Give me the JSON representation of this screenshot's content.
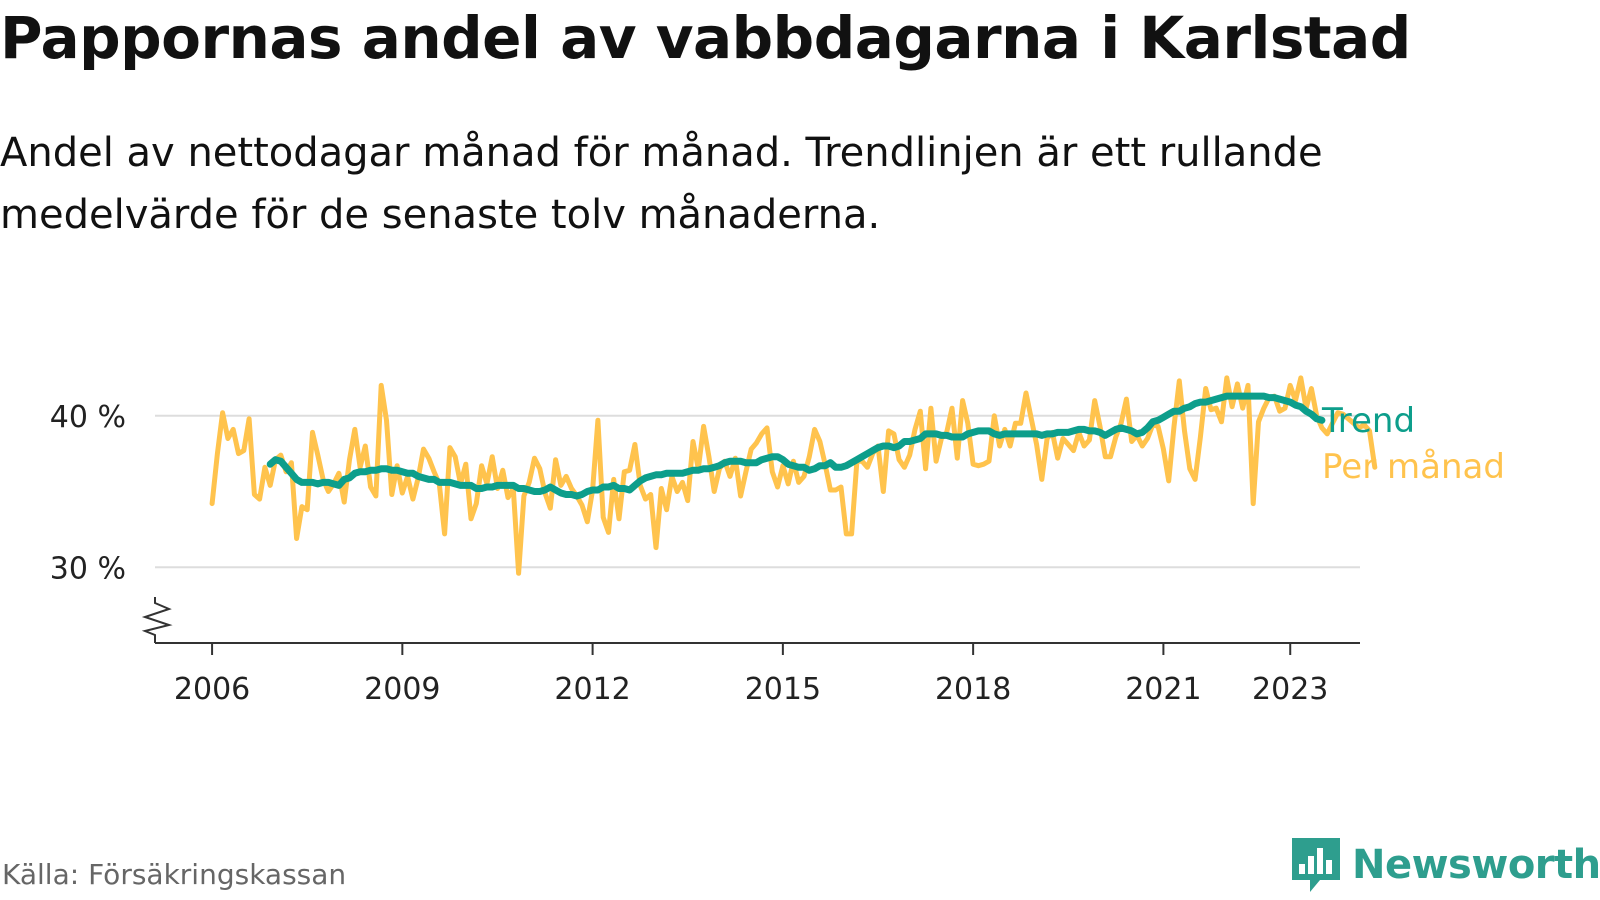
{
  "header": {
    "title": "Pappornas andel av vabbdagarna i Karlstad",
    "subtitle": "Andel av nettodagar månad för månad. Trendlinjen är ett rullande medelvärde för de senaste tolv månaderna."
  },
  "footer": {
    "source": "Källa: Försäkringskassan",
    "brand": "Newsworthy",
    "brand_icon": "bar-chart-speech-bubble-icon"
  },
  "colors": {
    "trend": "#0d9e8b",
    "monthly": "#ffc34d",
    "grid": "#dddddd",
    "axis": "#333333",
    "brand": "#2e9e8e"
  },
  "chart_data": {
    "type": "line",
    "x_range": [
      2005.1,
      2024.1
    ],
    "ylim": [
      25,
      45
    ],
    "y_ticks": [
      {
        "value": 30,
        "label": "30 %"
      },
      {
        "value": 40,
        "label": "40 %"
      }
    ],
    "x_ticks": [
      {
        "value": 2006,
        "label": "2006"
      },
      {
        "value": 2009,
        "label": "2009"
      },
      {
        "value": 2012,
        "label": "2012"
      },
      {
        "value": 2015,
        "label": "2015"
      },
      {
        "value": 2018,
        "label": "2018"
      },
      {
        "value": 2021,
        "label": "2021"
      },
      {
        "value": 2023,
        "label": "2023"
      }
    ],
    "grid": "horizontal",
    "axis_break": true,
    "legend": "inline-right",
    "series": [
      {
        "name": "Per månad",
        "x_start": "2006-01",
        "x_step": "1 month",
        "values": [
          34.2,
          37.5,
          40.2,
          38.5,
          39.1,
          37.5,
          37.7,
          39.8,
          34.8,
          34.5,
          36.6,
          35.4,
          37.1,
          37.4,
          36.3,
          36.9,
          31.9,
          34.0,
          33.8,
          38.9,
          37.4,
          35.8,
          35.0,
          35.5,
          36.2,
          34.3,
          37.1,
          39.1,
          36.6,
          38.0,
          35.3,
          34.7,
          42.0,
          39.7,
          34.8,
          36.7,
          34.9,
          36.0,
          34.5,
          35.9,
          37.8,
          37.2,
          36.3,
          35.5,
          32.2,
          37.9,
          37.3,
          35.5,
          36.8,
          33.2,
          34.2,
          36.7,
          35.5,
          37.3,
          35.2,
          36.4,
          34.6,
          35.2,
          29.6,
          34.7,
          35.6,
          37.2,
          36.5,
          34.9,
          33.9,
          37.1,
          35.4,
          36.0,
          35.2,
          34.7,
          34.1,
          33.0,
          35.1,
          39.7,
          33.3,
          32.3,
          35.8,
          33.2,
          36.3,
          36.4,
          38.1,
          35.4,
          34.5,
          34.8,
          31.3,
          35.2,
          33.8,
          36.0,
          35.0,
          35.6,
          34.4,
          38.3,
          36.5,
          39.3,
          37.3,
          35.0,
          36.5,
          37.0,
          36.0,
          37.2,
          34.7,
          36.3,
          37.8,
          38.2,
          38.8,
          39.2,
          36.3,
          35.3,
          36.7,
          35.5,
          37.0,
          35.6,
          36.0,
          37.3,
          39.1,
          38.3,
          36.8,
          35.1,
          35.1,
          35.3,
          32.2,
          32.2,
          37.0,
          37.0,
          36.6,
          37.5,
          38.0,
          35.0,
          39.0,
          38.8,
          37.1,
          36.6,
          37.4,
          39.1,
          40.3,
          36.5,
          40.5,
          37.0,
          38.5,
          38.9,
          40.5,
          37.2,
          41.0,
          39.5,
          36.8,
          36.7,
          36.8,
          37.0,
          40.0,
          38.0,
          39.1,
          38.0,
          39.5,
          39.5,
          41.5,
          39.8,
          38.1,
          35.8,
          38.5,
          38.9,
          37.2,
          38.5,
          38.1,
          37.7,
          38.9,
          38.0,
          38.4,
          41.0,
          39.3,
          37.3,
          37.3,
          38.6,
          39.5,
          41.1,
          38.3,
          38.7,
          38.0,
          38.5,
          39.4,
          39.3,
          37.8,
          35.7,
          39.3,
          42.3,
          39.0,
          36.5,
          35.8,
          38.6,
          41.8,
          40.4,
          40.5,
          39.6,
          42.5,
          40.6,
          42.1,
          40.5,
          42.0,
          34.2,
          39.6,
          40.5,
          41.2,
          41.3,
          40.3,
          40.5,
          42.0,
          41.0,
          42.5,
          40.5,
          41.8,
          40.0,
          39.2,
          38.8,
          39.5,
          40.2,
          40.1,
          39.8,
          39.5,
          39.2,
          39.4,
          39.0,
          36.6
        ]
      },
      {
        "name": "Trend",
        "x_start": "2006-12",
        "x_step": "1 month",
        "values": [
          36.8,
          37.1,
          37.0,
          36.6,
          36.2,
          35.8,
          35.6,
          35.6,
          35.6,
          35.5,
          35.6,
          35.6,
          35.5,
          35.4,
          35.8,
          35.9,
          36.2,
          36.3,
          36.3,
          36.4,
          36.4,
          36.5,
          36.5,
          36.4,
          36.4,
          36.3,
          36.2,
          36.2,
          36.0,
          35.9,
          35.8,
          35.8,
          35.6,
          35.6,
          35.6,
          35.5,
          35.4,
          35.4,
          35.4,
          35.2,
          35.2,
          35.3,
          35.3,
          35.4,
          35.4,
          35.4,
          35.4,
          35.2,
          35.2,
          35.1,
          35.0,
          35.0,
          35.1,
          35.3,
          35.1,
          34.9,
          34.8,
          34.8,
          34.7,
          34.8,
          35.0,
          35.1,
          35.1,
          35.3,
          35.3,
          35.4,
          35.2,
          35.2,
          35.1,
          35.4,
          35.7,
          35.9,
          36.0,
          36.1,
          36.1,
          36.2,
          36.2,
          36.2,
          36.2,
          36.3,
          36.4,
          36.4,
          36.5,
          36.5,
          36.6,
          36.7,
          36.9,
          37.0,
          37.0,
          37.0,
          36.9,
          36.9,
          36.9,
          37.1,
          37.2,
          37.3,
          37.3,
          37.1,
          36.8,
          36.7,
          36.6,
          36.6,
          36.4,
          36.5,
          36.7,
          36.7,
          36.9,
          36.6,
          36.6,
          36.7,
          36.9,
          37.1,
          37.3,
          37.5,
          37.7,
          37.9,
          38.0,
          38.0,
          37.9,
          38.0,
          38.3,
          38.3,
          38.4,
          38.5,
          38.8,
          38.8,
          38.8,
          38.7,
          38.7,
          38.6,
          38.6,
          38.6,
          38.8,
          38.9,
          39.0,
          39.0,
          39.0,
          38.8,
          38.7,
          38.8,
          38.8,
          38.8,
          38.8,
          38.8,
          38.8,
          38.8,
          38.7,
          38.8,
          38.8,
          38.9,
          38.9,
          38.9,
          39.0,
          39.1,
          39.1,
          39.0,
          39.0,
          38.9,
          38.7,
          38.9,
          39.1,
          39.2,
          39.1,
          39.0,
          38.8,
          38.9,
          39.2,
          39.6,
          39.7,
          39.9,
          40.1,
          40.3,
          40.3,
          40.5,
          40.6,
          40.8,
          40.9,
          40.9,
          41.0,
          41.1,
          41.2,
          41.3,
          41.3,
          41.3,
          41.3,
          41.3,
          41.3,
          41.3,
          41.3,
          41.2,
          41.2,
          41.1,
          41.0,
          40.9,
          40.7,
          40.6,
          40.3,
          40.1,
          39.8,
          39.7
        ]
      }
    ]
  }
}
